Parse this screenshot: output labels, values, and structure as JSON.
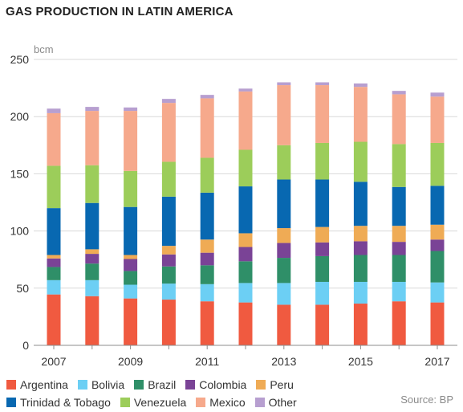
{
  "chart_data": {
    "type": "bar",
    "stacked": true,
    "title": "GAS PRODUCTION IN LATIN AMERICA",
    "ylabel": "bcm",
    "xlabel": "",
    "ylim": [
      0,
      250
    ],
    "yticks": [
      0,
      50,
      100,
      150,
      200,
      250
    ],
    "grid": true,
    "legend_position": "bottom",
    "source": "Source: BP",
    "categories": [
      "2007",
      "2008",
      "2009",
      "2010",
      "2011",
      "2012",
      "2013",
      "2014",
      "2015",
      "2016",
      "2017"
    ],
    "xtick_labels": [
      "2007",
      "",
      "2009",
      "",
      "2011",
      "",
      "2013",
      "",
      "2015",
      "",
      "2017"
    ],
    "series": [
      {
        "name": "Argentina",
        "color": "#f05a40",
        "values": [
          44.5,
          43,
          41,
          40,
          38.5,
          37.5,
          35.5,
          35.5,
          36.5,
          38.5,
          37.5
        ]
      },
      {
        "name": "Bolivia",
        "color": "#6ccff4",
        "values": [
          12.5,
          14,
          12,
          14,
          15,
          17,
          19,
          20,
          19,
          17,
          17.5
        ]
      },
      {
        "name": "Brazil",
        "color": "#2f8f68",
        "values": [
          11.5,
          14.5,
          12,
          15,
          16.5,
          19,
          22,
          22.5,
          23.5,
          23.5,
          27.5
        ]
      },
      {
        "name": "Colombia",
        "color": "#7a4396",
        "values": [
          7.5,
          8.5,
          10.5,
          10.5,
          11,
          12.5,
          13,
          12,
          12,
          11.5,
          10
        ]
      },
      {
        "name": "Peru",
        "color": "#efab55",
        "values": [
          3,
          4,
          3.5,
          7.5,
          11.5,
          12,
          13,
          13.5,
          13.5,
          14,
          13
        ]
      },
      {
        "name": "Trinidad & Tobago",
        "color": "#0868b1",
        "values": [
          41,
          40.5,
          42,
          43,
          41,
          41,
          42.5,
          41.5,
          38.5,
          34,
          34
        ]
      },
      {
        "name": "Venezuela",
        "color": "#9ccd5a",
        "values": [
          37,
          33,
          31.5,
          30.5,
          30.5,
          32,
          30,
          32,
          35,
          37.5,
          37.5
        ]
      },
      {
        "name": "Mexico",
        "color": "#f6a98c",
        "values": [
          46,
          47.5,
          52.5,
          51.5,
          52,
          51,
          52.5,
          50.5,
          48,
          43.5,
          40.5
        ]
      },
      {
        "name": "Other",
        "color": "#b79fd0",
        "values": [
          4,
          3.5,
          3,
          3.5,
          3,
          2.5,
          2.5,
          2.5,
          3,
          3,
          3.5
        ]
      }
    ]
  },
  "colors": {
    "grid": "#d9d9d9",
    "axis": "#8c8c8c",
    "tick_text": "#333333",
    "unit_text": "#8a8a8a"
  }
}
